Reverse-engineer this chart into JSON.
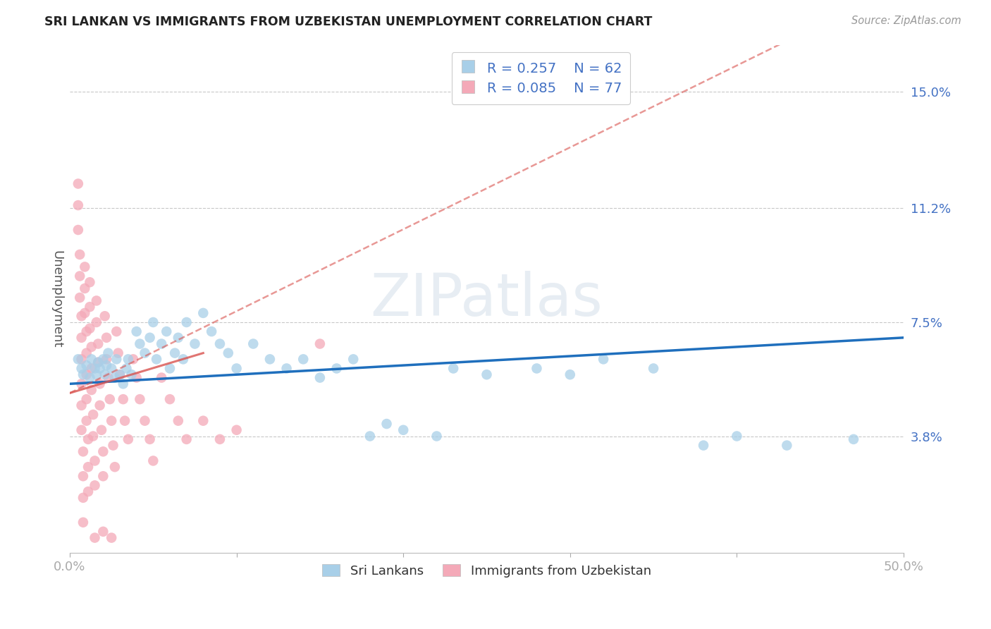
{
  "title": "SRI LANKAN VS IMMIGRANTS FROM UZBEKISTAN UNEMPLOYMENT CORRELATION CHART",
  "source": "Source: ZipAtlas.com",
  "ylabel": "Unemployment",
  "ytick_labels": [
    "15.0%",
    "11.2%",
    "7.5%",
    "3.8%"
  ],
  "ytick_values": [
    0.15,
    0.112,
    0.075,
    0.038
  ],
  "xlim": [
    0.0,
    0.5
  ],
  "ylim": [
    0.0,
    0.165
  ],
  "sri_lanka_color": "#a8cfe8",
  "uzbekistan_color": "#f4a9b8",
  "sri_lanka_line_color": "#1f6fbd",
  "uzbekistan_line_color": "#d9534f",
  "background_color": "#ffffff",
  "grid_color": "#c8c8c8",
  "title_color": "#222222",
  "axis_label_color": "#555555",
  "tick_color": "#4472c4",
  "watermark": "ZIPatlas",
  "sri_lankans_label": "Sri Lankans",
  "uzbekistan_label": "Immigrants from Uzbekistan",
  "sri_lanka_R": 0.257,
  "sri_lanka_N": 62,
  "uzbekistan_R": 0.085,
  "uzbekistan_N": 77,
  "sri_lanka_line": [
    0.0,
    0.055,
    0.5,
    0.07
  ],
  "uzbekistan_line": [
    0.0,
    0.052,
    0.5,
    0.185
  ],
  "sri_lanka_points": [
    [
      0.005,
      0.063
    ],
    [
      0.007,
      0.06
    ],
    [
      0.008,
      0.058
    ],
    [
      0.01,
      0.061
    ],
    [
      0.012,
      0.057
    ],
    [
      0.013,
      0.063
    ],
    [
      0.015,
      0.06
    ],
    [
      0.016,
      0.058
    ],
    [
      0.017,
      0.062
    ],
    [
      0.018,
      0.06
    ],
    [
      0.02,
      0.063
    ],
    [
      0.021,
      0.058
    ],
    [
      0.022,
      0.061
    ],
    [
      0.023,
      0.065
    ],
    [
      0.025,
      0.06
    ],
    [
      0.027,
      0.057
    ],
    [
      0.028,
      0.063
    ],
    [
      0.03,
      0.058
    ],
    [
      0.032,
      0.055
    ],
    [
      0.034,
      0.06
    ],
    [
      0.035,
      0.063
    ],
    [
      0.037,
      0.058
    ],
    [
      0.04,
      0.072
    ],
    [
      0.042,
      0.068
    ],
    [
      0.045,
      0.065
    ],
    [
      0.048,
      0.07
    ],
    [
      0.05,
      0.075
    ],
    [
      0.052,
      0.063
    ],
    [
      0.055,
      0.068
    ],
    [
      0.058,
      0.072
    ],
    [
      0.06,
      0.06
    ],
    [
      0.063,
      0.065
    ],
    [
      0.065,
      0.07
    ],
    [
      0.068,
      0.063
    ],
    [
      0.07,
      0.075
    ],
    [
      0.075,
      0.068
    ],
    [
      0.08,
      0.078
    ],
    [
      0.085,
      0.072
    ],
    [
      0.09,
      0.068
    ],
    [
      0.095,
      0.065
    ],
    [
      0.1,
      0.06
    ],
    [
      0.11,
      0.068
    ],
    [
      0.12,
      0.063
    ],
    [
      0.13,
      0.06
    ],
    [
      0.14,
      0.063
    ],
    [
      0.15,
      0.057
    ],
    [
      0.16,
      0.06
    ],
    [
      0.17,
      0.063
    ],
    [
      0.18,
      0.038
    ],
    [
      0.19,
      0.042
    ],
    [
      0.2,
      0.04
    ],
    [
      0.22,
      0.038
    ],
    [
      0.23,
      0.06
    ],
    [
      0.25,
      0.058
    ],
    [
      0.28,
      0.06
    ],
    [
      0.3,
      0.058
    ],
    [
      0.32,
      0.063
    ],
    [
      0.35,
      0.06
    ],
    [
      0.38,
      0.035
    ],
    [
      0.4,
      0.038
    ],
    [
      0.43,
      0.035
    ],
    [
      0.47,
      0.037
    ]
  ],
  "uzbekistan_points": [
    [
      0.005,
      0.12
    ],
    [
      0.005,
      0.113
    ],
    [
      0.005,
      0.105
    ],
    [
      0.006,
      0.097
    ],
    [
      0.006,
      0.09
    ],
    [
      0.006,
      0.083
    ],
    [
      0.007,
      0.077
    ],
    [
      0.007,
      0.07
    ],
    [
      0.007,
      0.063
    ],
    [
      0.007,
      0.055
    ],
    [
      0.007,
      0.048
    ],
    [
      0.007,
      0.04
    ],
    [
      0.008,
      0.033
    ],
    [
      0.008,
      0.025
    ],
    [
      0.008,
      0.018
    ],
    [
      0.008,
      0.01
    ],
    [
      0.009,
      0.093
    ],
    [
      0.009,
      0.086
    ],
    [
      0.009,
      0.078
    ],
    [
      0.01,
      0.072
    ],
    [
      0.01,
      0.065
    ],
    [
      0.01,
      0.058
    ],
    [
      0.01,
      0.05
    ],
    [
      0.01,
      0.043
    ],
    [
      0.011,
      0.037
    ],
    [
      0.011,
      0.028
    ],
    [
      0.011,
      0.02
    ],
    [
      0.012,
      0.088
    ],
    [
      0.012,
      0.08
    ],
    [
      0.012,
      0.073
    ],
    [
      0.013,
      0.067
    ],
    [
      0.013,
      0.06
    ],
    [
      0.013,
      0.053
    ],
    [
      0.014,
      0.045
    ],
    [
      0.014,
      0.038
    ],
    [
      0.015,
      0.03
    ],
    [
      0.015,
      0.022
    ],
    [
      0.016,
      0.082
    ],
    [
      0.016,
      0.075
    ],
    [
      0.017,
      0.068
    ],
    [
      0.017,
      0.062
    ],
    [
      0.018,
      0.055
    ],
    [
      0.018,
      0.048
    ],
    [
      0.019,
      0.04
    ],
    [
      0.02,
      0.033
    ],
    [
      0.02,
      0.025
    ],
    [
      0.021,
      0.077
    ],
    [
      0.022,
      0.07
    ],
    [
      0.022,
      0.063
    ],
    [
      0.023,
      0.057
    ],
    [
      0.024,
      0.05
    ],
    [
      0.025,
      0.043
    ],
    [
      0.026,
      0.035
    ],
    [
      0.027,
      0.028
    ],
    [
      0.028,
      0.072
    ],
    [
      0.029,
      0.065
    ],
    [
      0.03,
      0.058
    ],
    [
      0.032,
      0.05
    ],
    [
      0.033,
      0.043
    ],
    [
      0.035,
      0.037
    ],
    [
      0.038,
      0.063
    ],
    [
      0.04,
      0.057
    ],
    [
      0.042,
      0.05
    ],
    [
      0.045,
      0.043
    ],
    [
      0.048,
      0.037
    ],
    [
      0.05,
      0.03
    ],
    [
      0.055,
      0.057
    ],
    [
      0.06,
      0.05
    ],
    [
      0.065,
      0.043
    ],
    [
      0.07,
      0.037
    ],
    [
      0.08,
      0.043
    ],
    [
      0.09,
      0.037
    ],
    [
      0.1,
      0.04
    ],
    [
      0.015,
      0.005
    ],
    [
      0.02,
      0.007
    ],
    [
      0.025,
      0.005
    ],
    [
      0.15,
      0.068
    ]
  ]
}
